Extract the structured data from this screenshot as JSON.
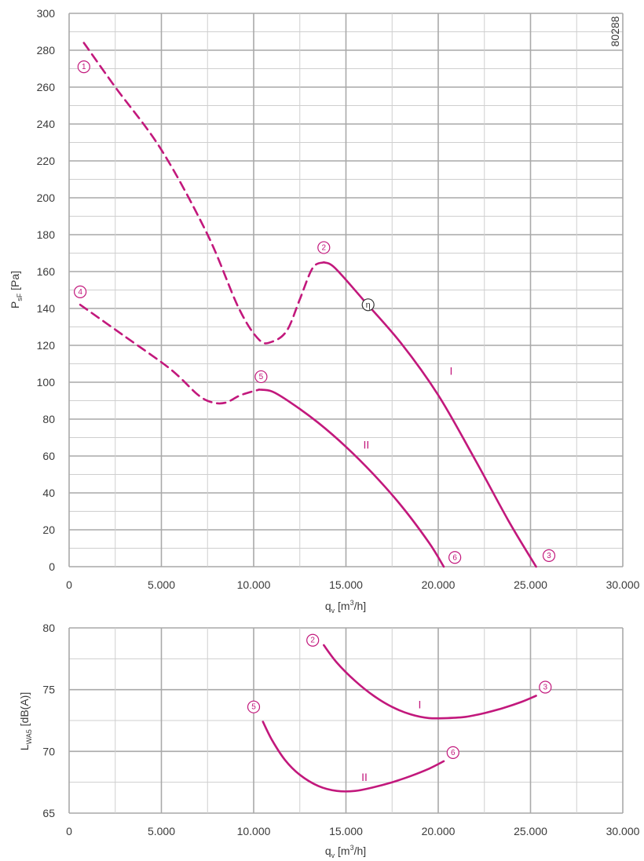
{
  "chart_data": [
    {
      "type": "line",
      "title": "",
      "xlabel": "q",
      "xlabel_sub": "v",
      "xlabel_unit_pre": " [m",
      "xlabel_unit_sup": "3",
      "xlabel_unit_post": "/h]",
      "ylabel": "P",
      "ylabel_sub": "sF",
      "ylabel_unit": " [Pa]",
      "xlim": [
        0,
        30000
      ],
      "ylim": [
        0,
        300
      ],
      "x_ticks": [
        0,
        5000,
        10000,
        15000,
        20000,
        25000,
        30000
      ],
      "x_tick_labels": [
        "0",
        "5.000",
        "10.000",
        "15.000",
        "20.000",
        "25.000",
        "30.000"
      ],
      "y_ticks": [
        0,
        20,
        40,
        60,
        80,
        100,
        120,
        140,
        160,
        180,
        200,
        220,
        240,
        260,
        280,
        300
      ],
      "y_tick_labels": [
        "0",
        "20",
        "40",
        "60",
        "80",
        "100",
        "120",
        "140",
        "160",
        "180",
        "200",
        "220",
        "240",
        "260",
        "280",
        "300"
      ],
      "grid": true,
      "code_label": "80288",
      "series": [
        {
          "name": "I",
          "style": "dashed",
          "x": [
            800,
            2500,
            5000,
            7500,
            9200,
            10300,
            11000,
            11800,
            12500,
            13200,
            13800
          ],
          "y": [
            284,
            260,
            226,
            180,
            140,
            123,
            122,
            128,
            145,
            162,
            165
          ]
        },
        {
          "name": "I",
          "style": "solid",
          "x": [
            13800,
            14400,
            16000,
            18000,
            20000,
            22000,
            23800,
            25300
          ],
          "y": [
            165,
            162,
            144,
            121,
            93,
            58,
            25,
            0
          ]
        },
        {
          "name": "II",
          "style": "dashed",
          "x": [
            600,
            3000,
            5500,
            7000,
            7800,
            8500,
            9300,
            10300
          ],
          "y": [
            142,
            125,
            107,
            93,
            89,
            89,
            93,
            96
          ]
        },
        {
          "name": "II",
          "style": "solid",
          "x": [
            10300,
            11000,
            12000,
            13500,
            15000,
            16500,
            18000,
            19500,
            20300
          ],
          "y": [
            96,
            95,
            89,
            78,
            65,
            50,
            33,
            13,
            0
          ]
        }
      ],
      "curve_labels": [
        {
          "text": "I",
          "x": 20700,
          "y": 104
        },
        {
          "text": "II",
          "x": 16100,
          "y": 64
        }
      ],
      "markers": [
        {
          "text": "1",
          "x": 800,
          "y": 271,
          "style": "pink"
        },
        {
          "text": "2",
          "x": 13800,
          "y": 173,
          "style": "pink"
        },
        {
          "text": "3",
          "x": 26000,
          "y": 6,
          "style": "pink"
        },
        {
          "text": "4",
          "x": 600,
          "y": 149,
          "style": "pink"
        },
        {
          "text": "5",
          "x": 10400,
          "y": 103,
          "style": "pink"
        },
        {
          "text": "6",
          "x": 20900,
          "y": 5,
          "style": "pink"
        },
        {
          "text": "η",
          "x": 16200,
          "y": 142,
          "style": "eta"
        }
      ]
    },
    {
      "type": "line",
      "title": "",
      "xlabel": "q",
      "xlabel_sub": "v",
      "xlabel_unit_pre": " [m",
      "xlabel_unit_sup": "3",
      "xlabel_unit_post": "/h]",
      "ylabel": "L",
      "ylabel_sub": "WA5",
      "ylabel_unit": " [dB(A)]",
      "xlim": [
        0,
        30000
      ],
      "ylim": [
        65,
        80
      ],
      "x_ticks": [
        0,
        5000,
        10000,
        15000,
        20000,
        25000,
        30000
      ],
      "x_tick_labels": [
        "0",
        "5.000",
        "10.000",
        "15.000",
        "20.000",
        "25.000",
        "30.000"
      ],
      "y_ticks": [
        65,
        70,
        75,
        80
      ],
      "y_tick_labels": [
        "65",
        "70",
        "75",
        "80"
      ],
      "grid": true,
      "series": [
        {
          "name": "I",
          "style": "solid",
          "x": [
            13800,
            14500,
            15500,
            16500,
            17500,
            18500,
            19500,
            20500,
            21500,
            22500,
            23500,
            24500,
            25300
          ],
          "y": [
            78.6,
            77.2,
            75.7,
            74.5,
            73.6,
            73.0,
            72.7,
            72.7,
            72.8,
            73.1,
            73.5,
            74.0,
            74.5
          ]
        },
        {
          "name": "II",
          "style": "solid",
          "x": [
            10500,
            11000,
            11700,
            12500,
            13500,
            14500,
            15500,
            16500,
            17500,
            18500,
            19500,
            20300
          ],
          "y": [
            72.4,
            70.9,
            69.3,
            68.1,
            67.2,
            66.8,
            66.8,
            67.1,
            67.5,
            68.0,
            68.6,
            69.2
          ]
        }
      ],
      "curve_labels": [
        {
          "text": "I",
          "x": 19000,
          "y": 73.5
        },
        {
          "text": "II",
          "x": 16000,
          "y": 67.6
        }
      ],
      "markers": [
        {
          "text": "2",
          "x": 13200,
          "y": 79.0,
          "style": "pink"
        },
        {
          "text": "3",
          "x": 25800,
          "y": 75.2,
          "style": "pink"
        },
        {
          "text": "5",
          "x": 10000,
          "y": 73.6,
          "style": "pink"
        },
        {
          "text": "6",
          "x": 20800,
          "y": 69.9,
          "style": "pink"
        }
      ]
    }
  ]
}
